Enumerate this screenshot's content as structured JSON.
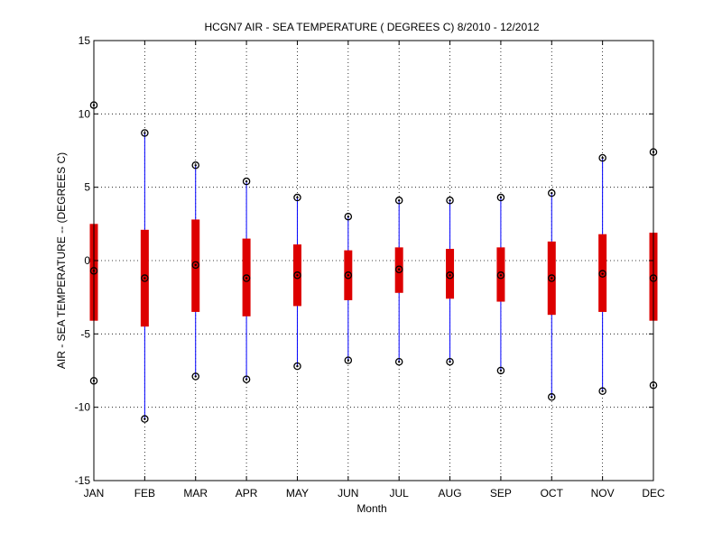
{
  "chart_data": {
    "type": "boxplot",
    "title": "HCGN7  AIR - SEA TEMPERATURE ( DEGREES C) 8/2010 - 12/2012",
    "xlabel": "Month",
    "ylabel": "AIR - SEA TEMPERATURE -- (DEGREES C)",
    "ylim": [
      -15,
      15
    ],
    "yticks": [
      -15,
      -10,
      -5,
      0,
      5,
      10,
      15
    ],
    "grid": true,
    "categories": [
      "JAN",
      "FEB",
      "MAR",
      "APR",
      "MAY",
      "JUN",
      "JUL",
      "AUG",
      "SEP",
      "OCT",
      "NOV",
      "DEC"
    ],
    "series": [
      {
        "name": "max",
        "values": [
          10.6,
          8.7,
          6.5,
          5.4,
          4.3,
          3.0,
          4.1,
          4.1,
          4.3,
          4.6,
          7.0,
          7.4
        ]
      },
      {
        "name": "upper",
        "values": [
          2.5,
          2.1,
          2.8,
          1.5,
          1.1,
          0.7,
          0.9,
          0.8,
          0.9,
          1.3,
          1.8,
          1.9
        ]
      },
      {
        "name": "median",
        "values": [
          -0.7,
          -1.2,
          -0.3,
          -1.2,
          -1.0,
          -1.0,
          -0.6,
          -1.0,
          -1.0,
          -1.2,
          -0.9,
          -1.2
        ]
      },
      {
        "name": "lower",
        "values": [
          -4.1,
          -4.5,
          -3.5,
          -3.8,
          -3.1,
          -2.7,
          -2.2,
          -2.6,
          -2.8,
          -3.7,
          -3.5,
          -4.1
        ]
      },
      {
        "name": "min",
        "values": [
          -8.2,
          -10.8,
          -7.9,
          -8.1,
          -7.2,
          -6.8,
          -6.9,
          -6.9,
          -7.5,
          -9.3,
          -8.9,
          -8.5
        ]
      }
    ],
    "colors": {
      "whisker": "#0000ff",
      "box": "#dd0000",
      "marker": "#000000",
      "grid": "#000000"
    }
  }
}
